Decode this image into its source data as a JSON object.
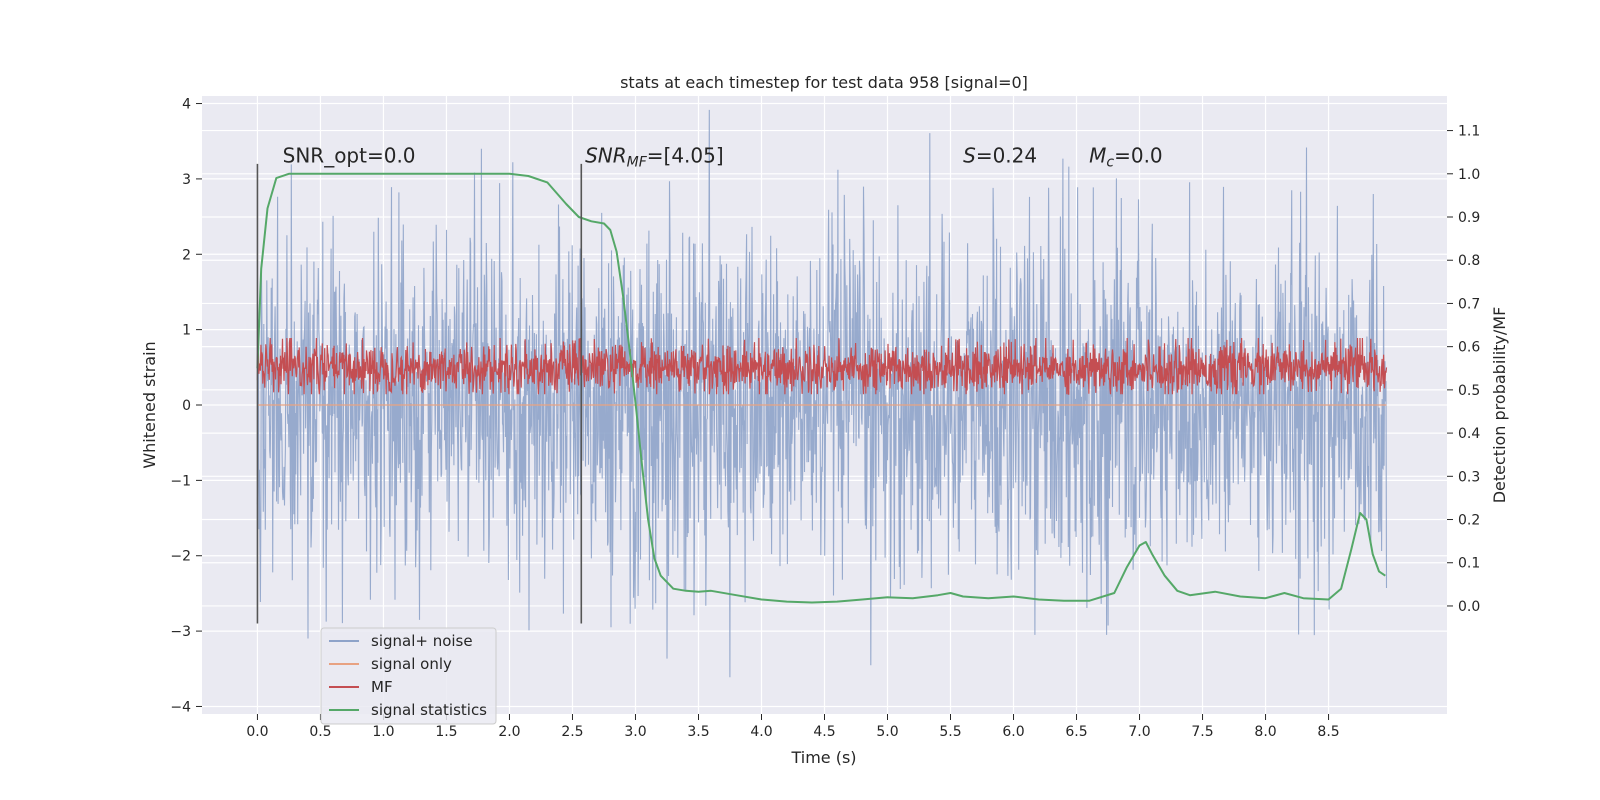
{
  "chart_data": {
    "type": "line",
    "title": "stats at each timestep for test data 958 [signal=0]",
    "xlabel": "Time (s)",
    "ylabel": "Whitened strain",
    "ylabel_right": "Detection probability/MF",
    "xlim": [
      -0.44,
      9.44
    ],
    "ylim": [
      -4.1,
      4.1
    ],
    "ylim_right": [
      -0.25,
      1.18
    ],
    "x_ticks": [
      0.0,
      0.5,
      1.0,
      1.5,
      2.0,
      2.5,
      3.0,
      3.5,
      4.0,
      4.5,
      5.0,
      5.5,
      6.0,
      6.5,
      7.0,
      7.5,
      8.0,
      8.5
    ],
    "x_tick_labels": [
      "0.0",
      "0.5",
      "1.0",
      "1.5",
      "2.0",
      "2.5",
      "3.0",
      "3.5",
      "4.0",
      "4.5",
      "5.0",
      "5.5",
      "6.0",
      "6.5",
      "7.0",
      "7.5",
      "8.0",
      "8.5"
    ],
    "y_ticks": [
      4,
      3,
      2,
      1,
      0,
      -1,
      -2,
      -3,
      -4
    ],
    "y_tick_labels": [
      "4",
      "3",
      "2",
      "1",
      "0",
      "−1",
      "−2",
      "−3",
      "−4"
    ],
    "y_right_ticks": [
      1.1,
      1.0,
      0.9,
      0.8,
      0.7,
      0.6,
      0.5,
      0.4,
      0.3,
      0.2,
      0.1,
      0.0
    ],
    "y_right_tick_labels": [
      "1.1",
      "1.0",
      "0.9",
      "0.8",
      "0.7",
      "0.6",
      "0.5",
      "0.4",
      "0.3",
      "0.2",
      "0.1",
      "0.0"
    ],
    "grid": true,
    "legend_position": "lower-left",
    "annotations": {
      "snr_opt": "SNR_opt=0.0",
      "snr_mf_var": "SNR",
      "snr_mf_sub": "MF",
      "snr_mf_val": "=[4.05]",
      "s_var": "S",
      "s_val": "=0.24",
      "mc_var": "M",
      "mc_sub": "c",
      "mc_val": "=0.0"
    },
    "annotation_positions": [
      {
        "key": "snr_opt",
        "x": 0.2,
        "y": 3.22
      },
      {
        "key": "snr_mf",
        "x": 2.6,
        "y": 3.22
      },
      {
        "key": "s",
        "x": 5.6,
        "y": 3.22
      },
      {
        "key": "mc",
        "x": 6.6,
        "y": 3.22
      }
    ],
    "vertical_markers": [
      {
        "x": 0.0,
        "y_range": [
          -2.9,
          3.2
        ]
      },
      {
        "x": 2.57,
        "y_range": [
          -2.9,
          3.2
        ]
      }
    ],
    "series": [
      {
        "name": "signal+ noise",
        "color": "#8ea3c9",
        "axis": "left",
        "kind": "noise",
        "x_range": [
          0.0,
          8.96
        ],
        "sigma": 1.15,
        "approx_range": [
          -3.7,
          4.0
        ]
      },
      {
        "name": "signal only",
        "color": "#e8a282",
        "axis": "left",
        "kind": "flat",
        "x": [
          0.0,
          8.96
        ],
        "values": [
          0.0,
          0.0
        ]
      },
      {
        "name": "MF",
        "color": "#c44e52",
        "axis": "right",
        "kind": "band",
        "x_range": [
          0.0,
          8.96
        ],
        "center": 0.55,
        "approx_range": [
          0.49,
          0.62
        ]
      },
      {
        "name": "signal statistics",
        "color": "#55a868",
        "axis": "right",
        "kind": "line",
        "x": [
          0.0,
          0.03,
          0.08,
          0.15,
          0.25,
          0.5,
          1.0,
          1.5,
          2.0,
          2.15,
          2.3,
          2.45,
          2.55,
          2.65,
          2.75,
          2.8,
          2.85,
          2.9,
          2.95,
          3.0,
          3.05,
          3.1,
          3.15,
          3.2,
          3.3,
          3.4,
          3.5,
          3.6,
          3.8,
          4.0,
          4.2,
          4.4,
          4.6,
          4.8,
          5.0,
          5.2,
          5.4,
          5.5,
          5.6,
          5.8,
          6.0,
          6.2,
          6.4,
          6.6,
          6.8,
          6.9,
          7.0,
          7.05,
          7.1,
          7.2,
          7.3,
          7.4,
          7.6,
          7.8,
          8.0,
          8.15,
          8.3,
          8.5,
          8.6,
          8.68,
          8.75,
          8.8,
          8.85,
          8.9,
          8.95
        ],
        "values": [
          0.55,
          0.78,
          0.92,
          0.99,
          1.0,
          1.0,
          1.0,
          1.0,
          1.0,
          0.995,
          0.98,
          0.93,
          0.9,
          0.89,
          0.885,
          0.87,
          0.82,
          0.72,
          0.6,
          0.47,
          0.33,
          0.2,
          0.11,
          0.07,
          0.04,
          0.035,
          0.033,
          0.035,
          0.025,
          0.015,
          0.01,
          0.008,
          0.01,
          0.015,
          0.02,
          0.018,
          0.025,
          0.03,
          0.022,
          0.018,
          0.022,
          0.015,
          0.012,
          0.012,
          0.03,
          0.09,
          0.14,
          0.148,
          0.12,
          0.07,
          0.035,
          0.025,
          0.033,
          0.022,
          0.018,
          0.03,
          0.018,
          0.015,
          0.04,
          0.13,
          0.215,
          0.2,
          0.12,
          0.08,
          0.07
        ]
      }
    ],
    "legend": [
      "signal+ noise",
      "signal only",
      "MF",
      "signal statistics"
    ]
  }
}
